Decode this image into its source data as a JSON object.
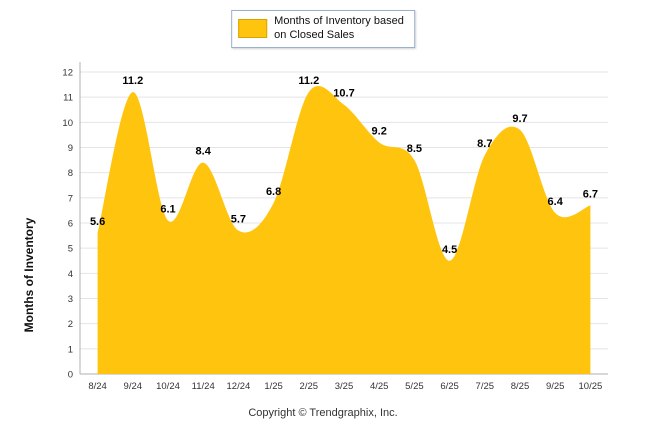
{
  "legend": {
    "label_line1": "Months of Inventory based",
    "label_line2": "on Closed Sales",
    "swatch_color": "#FFC40D"
  },
  "footer": {
    "copyright": "Copyright © Trendgraphix, Inc."
  },
  "chart_data": {
    "type": "area",
    "title": "",
    "series_name": "Months of Inventory based on Closed Sales",
    "categories": [
      "8/24",
      "9/24",
      "10/24",
      "11/24",
      "12/24",
      "1/25",
      "2/25",
      "3/25",
      "4/25",
      "5/25",
      "6/25",
      "7/25",
      "8/25",
      "9/25",
      "10/25"
    ],
    "values": [
      5.6,
      11.2,
      6.1,
      8.4,
      5.7,
      6.8,
      11.2,
      10.7,
      9.2,
      8.5,
      4.5,
      8.7,
      9.7,
      6.4,
      6.7
    ],
    "xlabel": "",
    "ylabel": "Months of Inventory",
    "ylim": [
      0,
      12
    ],
    "ytick_step": 1,
    "grid": true,
    "legend_position": "top",
    "fill_color": "#FFC40D",
    "grid_color": "#e4e4e4",
    "axis_color": "#b0b0b0",
    "label_color": "#000000"
  }
}
